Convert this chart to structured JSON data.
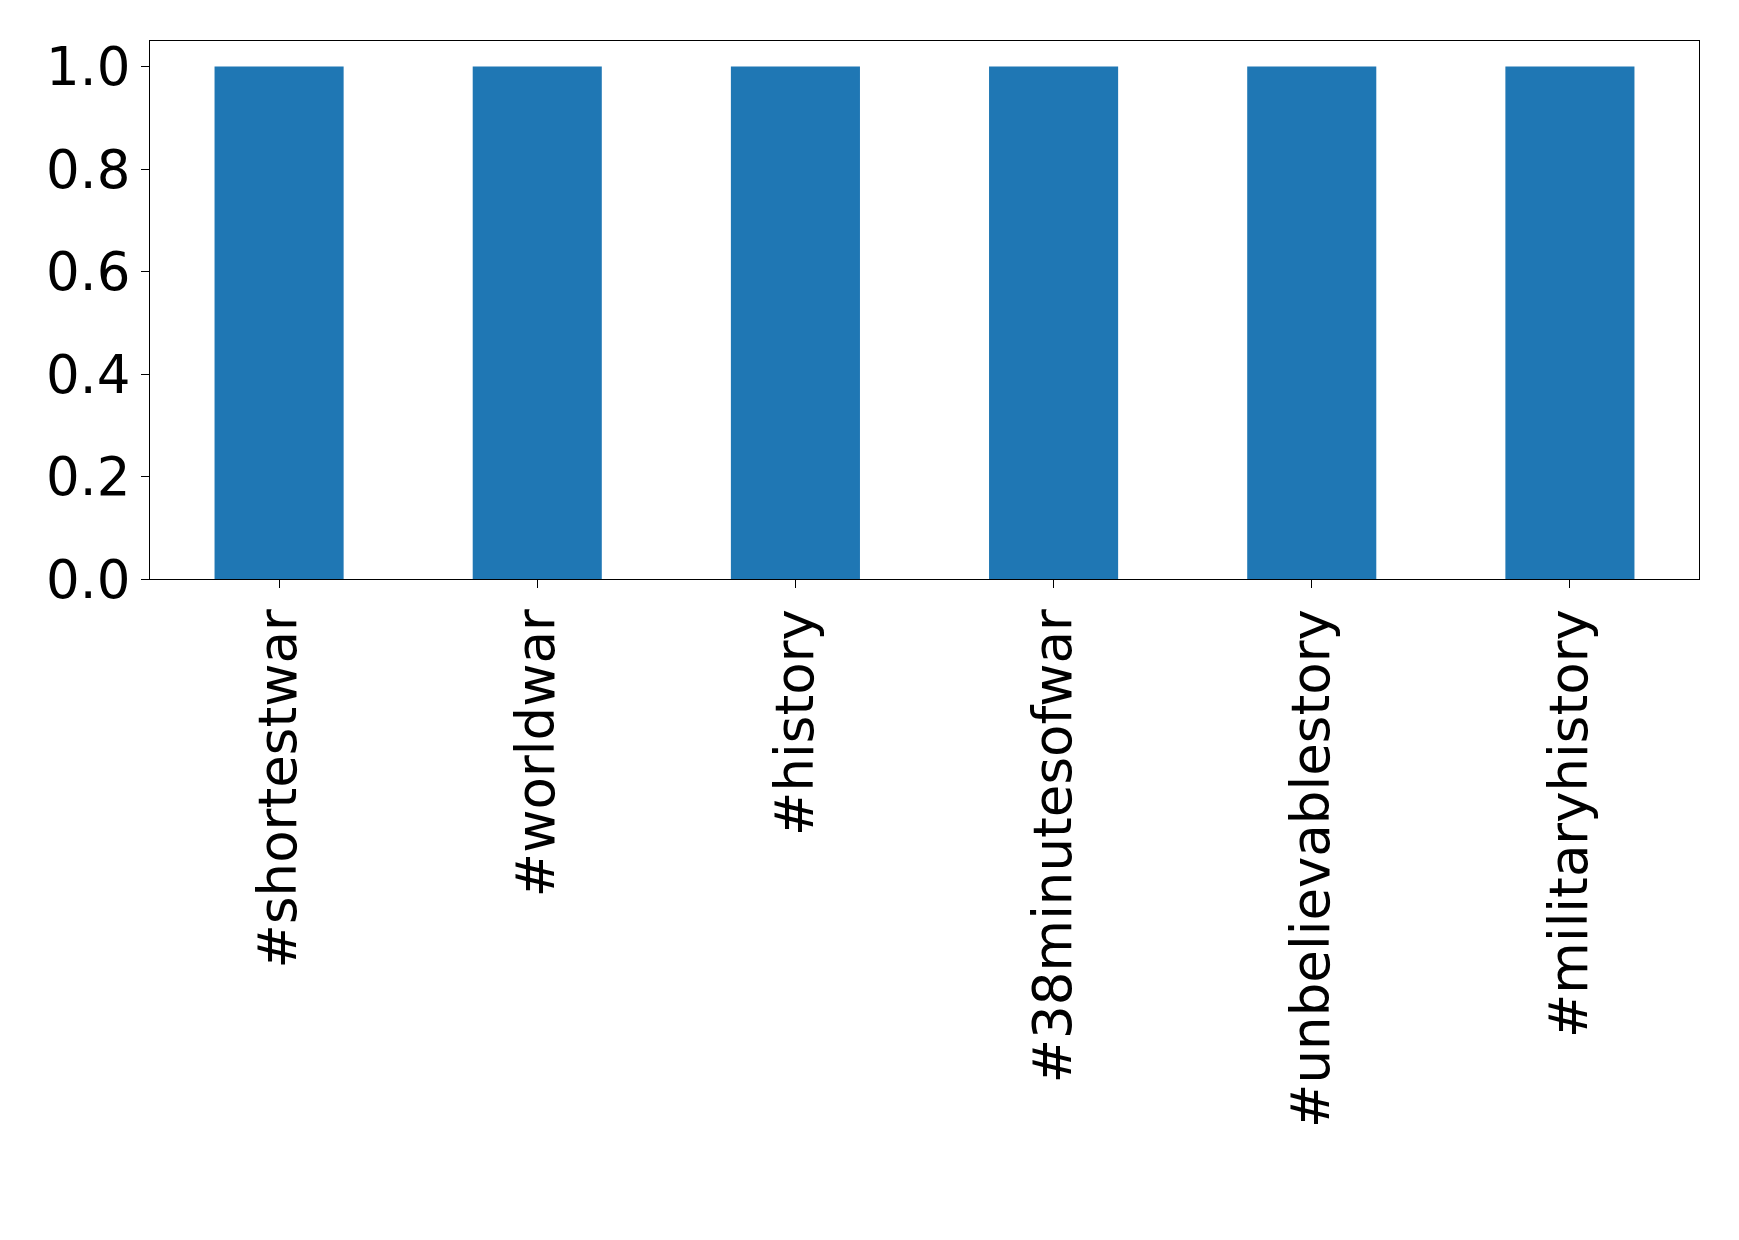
{
  "chart_data": {
    "type": "bar",
    "categories": [
      "#shortestwar",
      "#worldwar",
      "#history",
      "#38minutesofwar",
      "#unbelievablestory",
      "#militaryhistory"
    ],
    "values": [
      1,
      1,
      1,
      1,
      1,
      1
    ],
    "color": "#1f77b4",
    "ylim": [
      0,
      1.05
    ],
    "yticks": [
      {
        "value": 0,
        "label": "0.0"
      },
      {
        "value": 0.2,
        "label": "0.2"
      },
      {
        "value": 0.4,
        "label": "0.4"
      },
      {
        "value": 0.6,
        "label": "0.6"
      },
      {
        "value": 0.8,
        "label": "0.8"
      },
      {
        "value": 1,
        "label": "1.0"
      }
    ],
    "grid": false,
    "legend": false
  }
}
